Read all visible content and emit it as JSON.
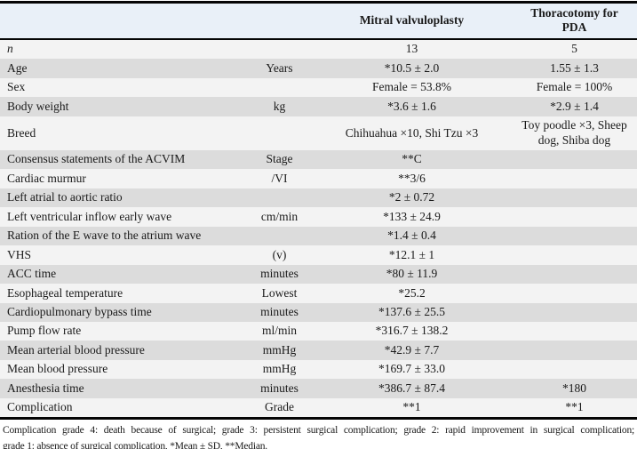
{
  "table": {
    "header": {
      "param_label": "",
      "unit_label": "",
      "group1_label": "Mitral valvuloplasty",
      "group2_label": "Thoracotomy for PDA"
    },
    "rows": [
      {
        "param": "n",
        "unit": "",
        "mv": "13",
        "pda": "5"
      },
      {
        "param": "Age",
        "unit": "Years",
        "mv": "*10.5 ± 2.0",
        "pda": "1.55 ± 1.3"
      },
      {
        "param": "Sex",
        "unit": "",
        "mv": "Female = 53.8%",
        "pda": "Female = 100%"
      },
      {
        "param": "Body weight",
        "unit": "kg",
        "mv": "*3.6 ± 1.6",
        "pda": "*2.9 ± 1.4"
      },
      {
        "param": "Breed",
        "unit": "",
        "mv": "Chihuahua ×10, Shi Tzu ×3",
        "pda": "Toy poodle ×3, Sheep dog, Shiba dog"
      },
      {
        "param": "Consensus statements of the ACVIM",
        "unit": "Stage",
        "mv": "**C",
        "pda": ""
      },
      {
        "param": "Cardiac murmur",
        "unit": "/VI",
        "mv": "**3/6",
        "pda": ""
      },
      {
        "param": "Left atrial to aortic ratio",
        "unit": "",
        "mv": "*2 ± 0.72",
        "pda": ""
      },
      {
        "param": "Left ventricular inflow early wave",
        "unit": "cm/min",
        "mv": "*133 ± 24.9",
        "pda": ""
      },
      {
        "param": "Ration of the E wave to the atrium wave",
        "unit": "",
        "mv": "*1.4 ± 0.4",
        "pda": ""
      },
      {
        "param": "VHS",
        "unit": "(v)",
        "mv": "*12.1 ± 1",
        "pda": ""
      },
      {
        "param": "ACC time",
        "unit": "minutes",
        "mv": "*80 ± 11.9",
        "pda": ""
      },
      {
        "param": "Esophageal temperature",
        "unit": "Lowest",
        "mv": "*25.2",
        "pda": ""
      },
      {
        "param": "Cardiopulmonary bypass time",
        "unit": "minutes",
        "mv": "*137.6 ± 25.5",
        "pda": ""
      },
      {
        "param": "Pump flow rate",
        "unit": "ml/min",
        "mv": "*316.7 ± 138.2",
        "pda": ""
      },
      {
        "param": "Mean arterial blood pressure",
        "unit": "mmHg",
        "mv": "*42.9 ± 7.7",
        "pda": ""
      },
      {
        "param": "Mean blood pressure",
        "unit": "mmHg",
        "mv": "*169.7 ± 33.0",
        "pda": ""
      },
      {
        "param": "Anesthesia time",
        "unit": "minutes",
        "mv": "*386.7 ± 87.4",
        "pda": "*180"
      },
      {
        "param": "Complication",
        "unit": "Grade",
        "mv": "**1",
        "pda": "**1"
      }
    ],
    "footnote_lines": [
      "Complication grade 4: death because of surgical; grade 3: persistent surgical complication; grade 2: rapid improvement in surgical complication;",
      "grade 1: absence of surgical complication, *Mean ± SD, **Median."
    ]
  },
  "colors": {
    "header_background": "#e9f0f8",
    "row_light": "#f3f3f3",
    "row_dark": "#dcdcdc",
    "border": "#050505",
    "text": "#1a1a1a"
  }
}
